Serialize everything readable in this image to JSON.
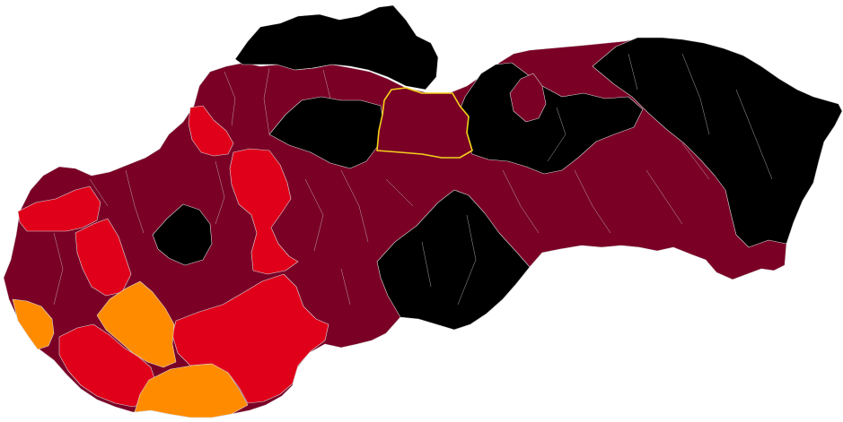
{
  "legend_colors": {
    "black": "#000000",
    "dark_red": "#7a0026",
    "red": "#e0001a",
    "orange": "#ff8c00"
  },
  "highlight_color": "#f2d21b",
  "regions": [
    {
      "id": "far-west-lowland",
      "level": "dark_red"
    },
    {
      "id": "west-red-band",
      "level": "red"
    },
    {
      "id": "southwest-orange",
      "level": "orange"
    },
    {
      "id": "south-orange",
      "level": "orange"
    },
    {
      "id": "central-orange",
      "level": "orange"
    },
    {
      "id": "southwest-red",
      "level": "red"
    },
    {
      "id": "south-central-red",
      "level": "red"
    },
    {
      "id": "north-west-red",
      "level": "red"
    },
    {
      "id": "central-red-corridor",
      "level": "red"
    },
    {
      "id": "west-central-black",
      "level": "black"
    },
    {
      "id": "north-black",
      "level": "black"
    },
    {
      "id": "north-central-black",
      "level": "black"
    },
    {
      "id": "south-central-black",
      "level": "black"
    },
    {
      "id": "east-black",
      "level": "black"
    },
    {
      "id": "east-central-black",
      "level": "black"
    },
    {
      "id": "highlighted-district",
      "level": "dark_red"
    }
  ]
}
